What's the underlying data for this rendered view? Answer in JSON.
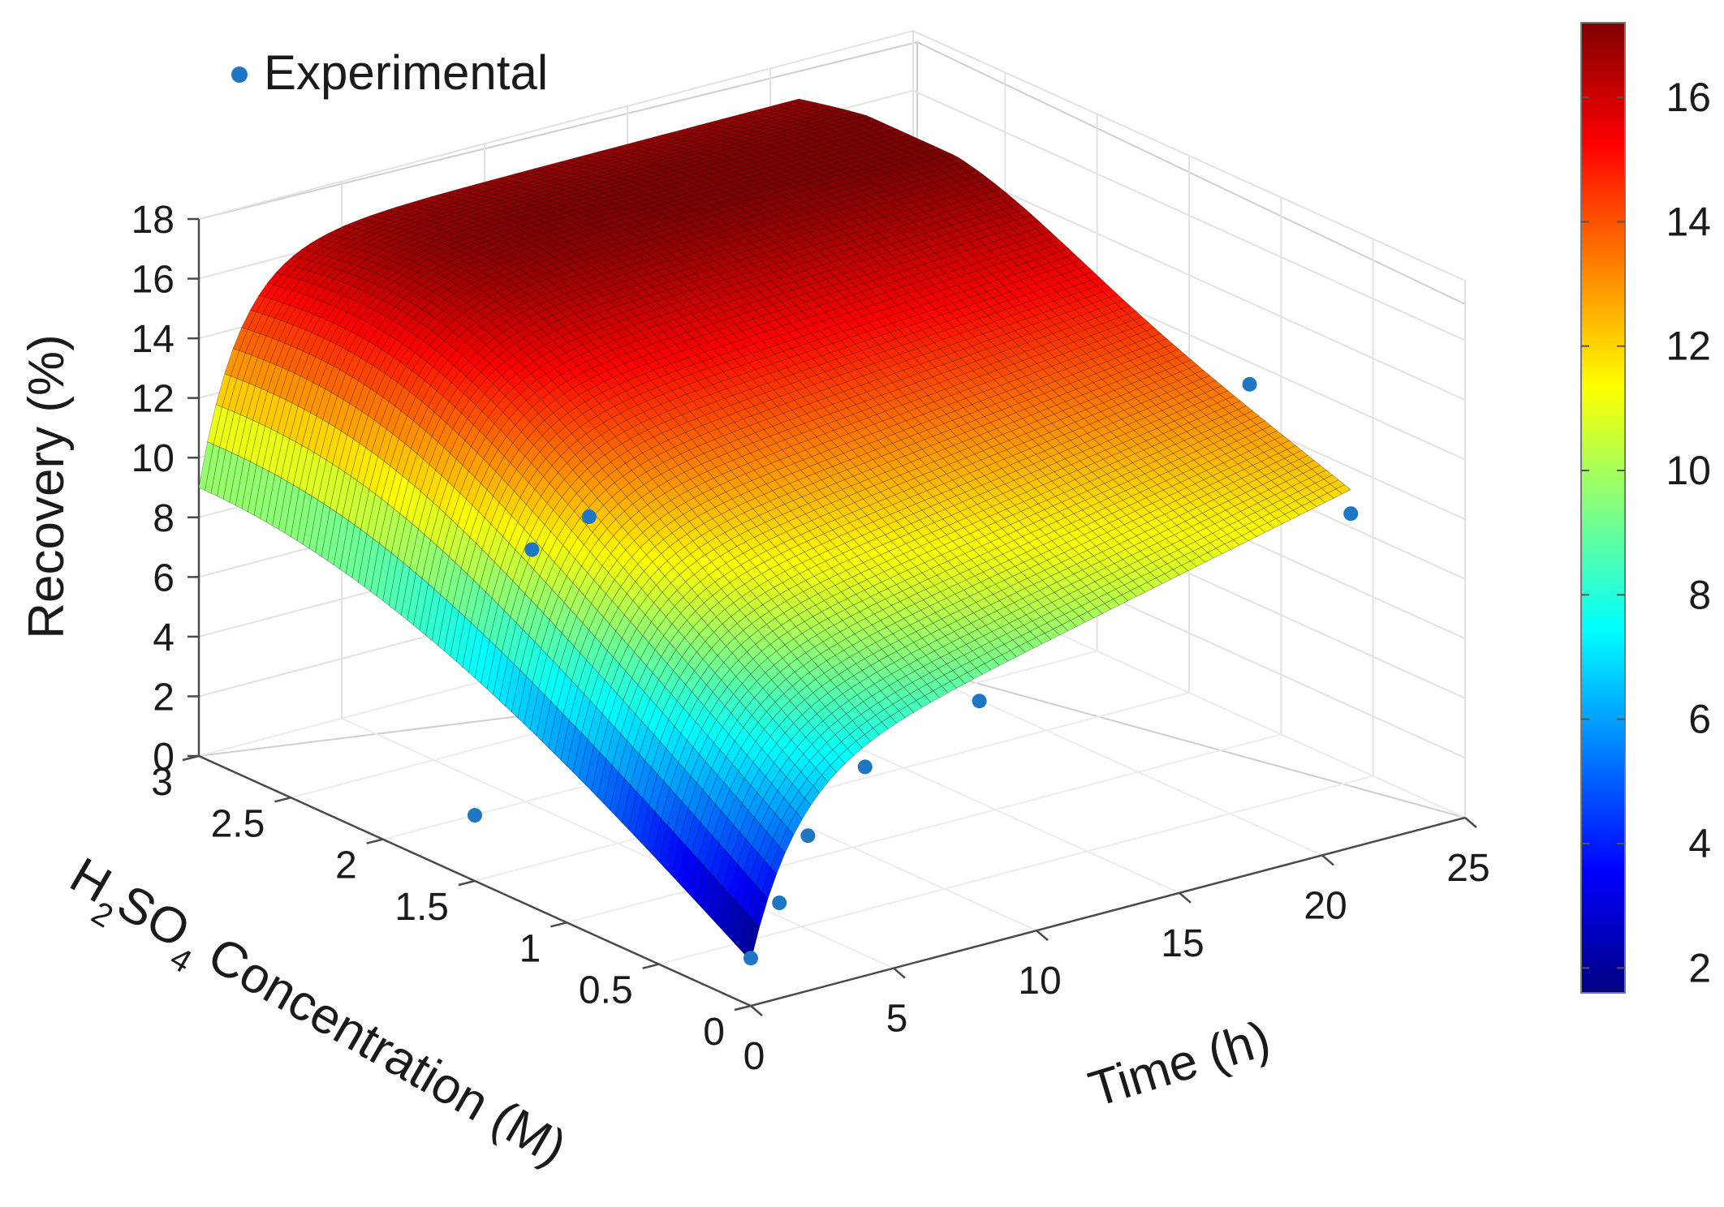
{
  "chart_data": {
    "type": "surface3d",
    "title": "",
    "legend": {
      "label": "Experimental",
      "marker_color": "#1f77c4",
      "placement": "top-left"
    },
    "z_axis": {
      "label": "Recovery (%)",
      "ticks": [
        "0",
        "2",
        "4",
        "6",
        "8",
        "10",
        "12",
        "14",
        "16",
        "18"
      ],
      "range": [
        0,
        18
      ]
    },
    "x_axis": {
      "label_main": "H",
      "label_sub1": "2",
      "label_mid": "SO",
      "label_sub2": "4",
      "label_rest": " Concentration (M)",
      "ticks": [
        "0",
        "0.5",
        "1",
        "1.5",
        "2",
        "2.5",
        "3"
      ],
      "range": [
        0,
        3
      ]
    },
    "y_axis": {
      "label": "Time (h)",
      "ticks": [
        "0",
        "5",
        "10",
        "15",
        "20",
        "25"
      ],
      "range": [
        0,
        25
      ]
    },
    "colorbar": {
      "ticks": [
        "2",
        "4",
        "6",
        "8",
        "10",
        "12",
        "14",
        "16"
      ],
      "range": [
        1.6,
        17.2
      ],
      "colors": [
        "#000080",
        "#0000ff",
        "#0080ff",
        "#00ffff",
        "#80ff80",
        "#ffff00",
        "#ff8000",
        "#ff0000",
        "#800000"
      ]
    },
    "surface_corners": {
      "c0_t0": 1.5,
      "c0_t21": 12.0,
      "c3_t0": 9.0,
      "c3_t21": 16.0
    },
    "experimental_points": [
      {
        "c": 0,
        "t": 0,
        "recovery": 1.6
      },
      {
        "c": 0,
        "t": 1,
        "recovery": 3.2
      },
      {
        "c": 0,
        "t": 2,
        "recovery": 5.2
      },
      {
        "c": 0,
        "t": 4,
        "recovery": 7.0
      },
      {
        "c": 0,
        "t": 8,
        "recovery": 8.2
      },
      {
        "c": 0,
        "t": 21,
        "recovery": 11.2
      },
      {
        "c": 0.55,
        "t": 21,
        "recovery": 14.0
      },
      {
        "c": 1.5,
        "t": 0,
        "recovery": 2.2
      },
      {
        "c": 1.5,
        "t": 2,
        "recovery": 10.6
      },
      {
        "c": 1.5,
        "t": 4,
        "recovery": 11.2
      }
    ]
  }
}
